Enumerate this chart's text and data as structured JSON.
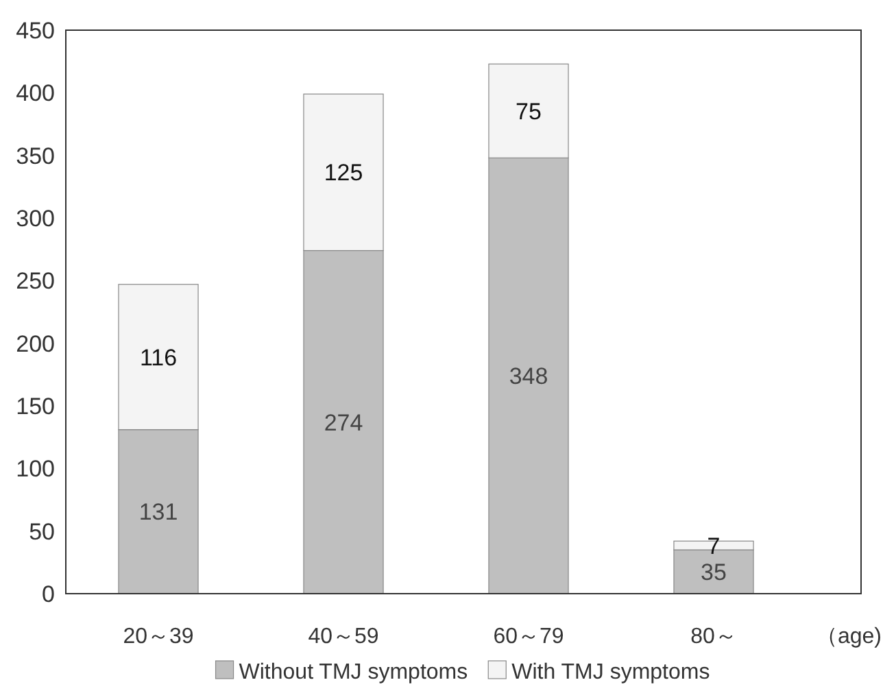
{
  "chart_data": {
    "type": "bar",
    "stacked": true,
    "categories": [
      "20～39",
      "40～59",
      "60～79",
      "80～"
    ],
    "xlabel": "（age)",
    "series": [
      {
        "name": "Without TMJ symptoms",
        "color": "#bfbfbf",
        "values": [
          131,
          274,
          348,
          35
        ]
      },
      {
        "name": "With TMJ symptoms",
        "color": "#f4f4f4",
        "values": [
          116,
          125,
          75,
          7
        ]
      }
    ],
    "ylim": [
      0,
      450
    ],
    "yticks": [
      0,
      50,
      100,
      150,
      200,
      250,
      300,
      350,
      400,
      450
    ],
    "data_labels": true,
    "legend": "bottom"
  }
}
